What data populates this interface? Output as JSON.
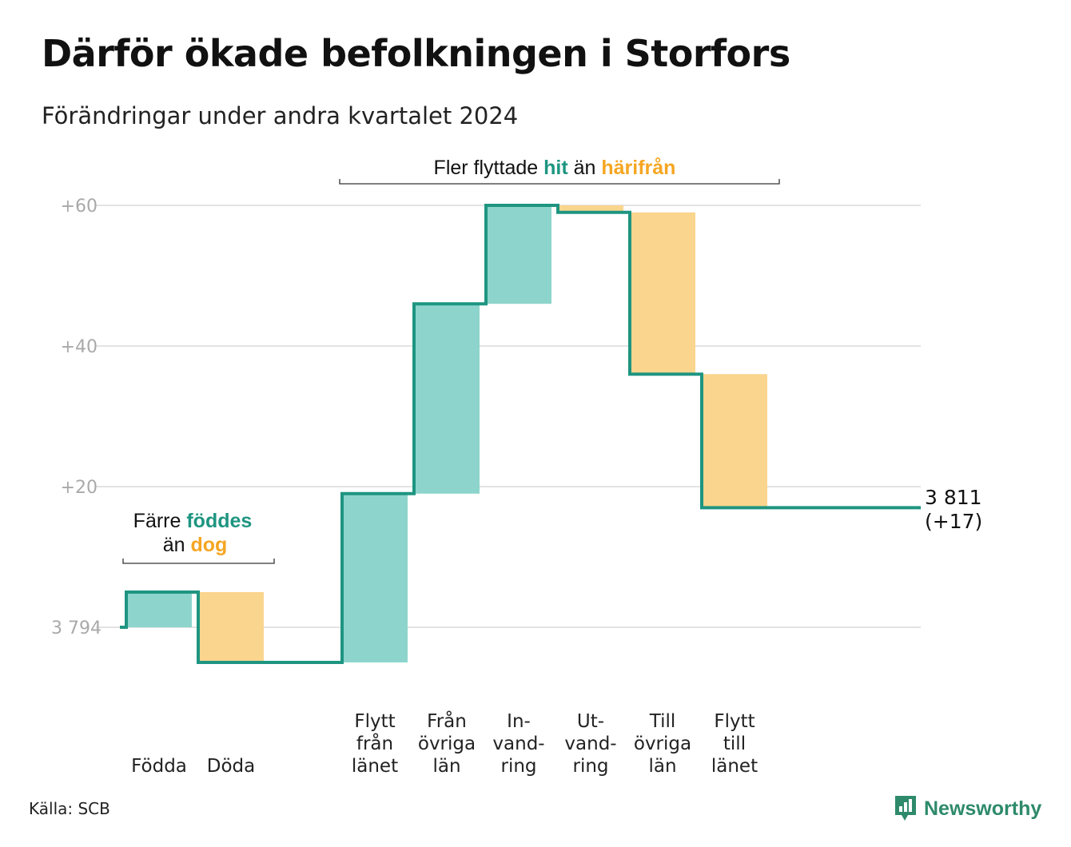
{
  "header": {
    "title": "Därför ökade befolkningen i Storfors",
    "subtitle": "Förändringar under andra kvartalet 2024"
  },
  "colors": {
    "increase": "#8dd5cc",
    "decrease": "#fad58e",
    "line": "#1e9581",
    "grid": "#e3e3e3",
    "accent_teal": "#1e9581",
    "accent_orange": "#f5a623"
  },
  "chart_data": {
    "type": "waterfall",
    "baseline": 3794,
    "ylim": [
      -5,
      62
    ],
    "y_ticks": [
      {
        "value": 0,
        "label": "3  794"
      },
      {
        "value": 20,
        "label": "+20"
      },
      {
        "value": 40,
        "label": "+40"
      },
      {
        "value": 60,
        "label": "+60"
      }
    ],
    "steps": [
      {
        "lines": [
          "Födda"
        ],
        "change": 5,
        "direction": "in"
      },
      {
        "lines": [
          "Döda"
        ],
        "change": -10,
        "direction": "out"
      },
      {
        "lines": [],
        "change": 0,
        "direction": "gap"
      },
      {
        "lines": [
          "Flytt",
          "från",
          "länet"
        ],
        "change": 24,
        "direction": "in"
      },
      {
        "lines": [
          "Från",
          "övriga",
          "län"
        ],
        "change": 27,
        "direction": "in"
      },
      {
        "lines": [
          "In-",
          "vand-",
          "ring"
        ],
        "change": 14,
        "direction": "in"
      },
      {
        "lines": [
          "Ut-",
          "vand-",
          "ring"
        ],
        "change": -1,
        "direction": "out"
      },
      {
        "lines": [
          "Till",
          "övriga",
          "län"
        ],
        "change": -23,
        "direction": "out"
      },
      {
        "lines": [
          "Flytt",
          "till",
          "länet"
        ],
        "change": -19,
        "direction": "out"
      }
    ],
    "end_value": "3 811",
    "end_change": "(+17)",
    "grid": true
  },
  "annotations": {
    "births": {
      "line1_prefix": "Färre ",
      "line1_highlight": "föddes",
      "line2_prefix": "än ",
      "line2_highlight": "dog"
    },
    "moves": {
      "prefix": "Fler flyttade ",
      "highlight1": "hit",
      "middle": " än ",
      "highlight2": "härifrån"
    }
  },
  "footer": {
    "source": "Källa: SCB",
    "brand": "Newsworthy"
  }
}
